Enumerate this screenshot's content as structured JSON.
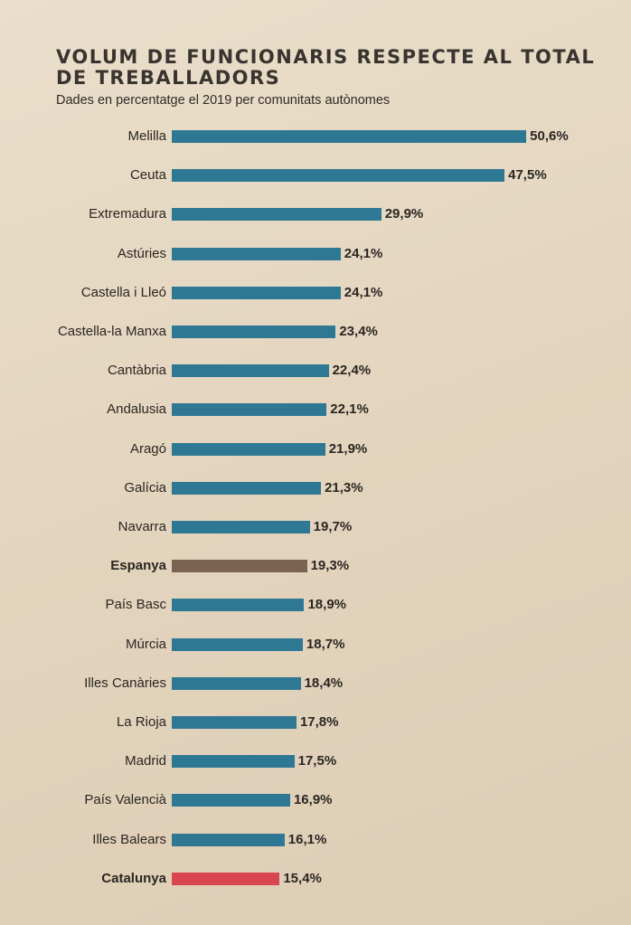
{
  "colors": {
    "default": "#2f7894",
    "spain": "#7a6350",
    "catalonia": "#d9464f"
  },
  "chart_data": {
    "type": "bar",
    "orientation": "horizontal",
    "title": "VOLUM DE FUNCIONARIS RESPECTE AL TOTAL DE TREBALLADORS",
    "subtitle": "Dades en percentatge el 2019 per comunitats autònomes",
    "xlabel": "",
    "ylabel": "",
    "unit": "%",
    "categories": [
      "Melilla",
      "Ceuta",
      "Extremadura",
      "Astúries",
      "Castella i Lleó",
      "Castella-la Manxa",
      "Cantàbria",
      "Andalusia",
      "Aragó",
      "Galícia",
      "Navarra",
      "Espanya",
      "País Basc",
      "Múrcia",
      "Illes Canàries",
      "La Rioja",
      "Madrid",
      "País Valencià",
      "Illes Balears",
      "Catalunya"
    ],
    "values": [
      50.6,
      47.5,
      29.9,
      24.1,
      24.1,
      23.4,
      22.4,
      22.1,
      21.9,
      21.3,
      19.7,
      19.3,
      18.9,
      18.7,
      18.4,
      17.8,
      17.5,
      16.9,
      16.1,
      15.4
    ],
    "value_labels": [
      "50,6%",
      "47,5%",
      "29,9%",
      "24,1%",
      "24,1%",
      "23,4%",
      "22,4%",
      "22,1%",
      "21,9%",
      "21,3%",
      "19,7%",
      "19,3%",
      "18,9%",
      "18,7%",
      "18,4%",
      "17,8%",
      "17,5%",
      "16,9%",
      "16,1%",
      "15,4%"
    ],
    "highlights": {
      "Espanya": "spain",
      "Catalunya": "catalonia"
    },
    "xlim": [
      0,
      52
    ],
    "grid": false,
    "legend": "none"
  }
}
